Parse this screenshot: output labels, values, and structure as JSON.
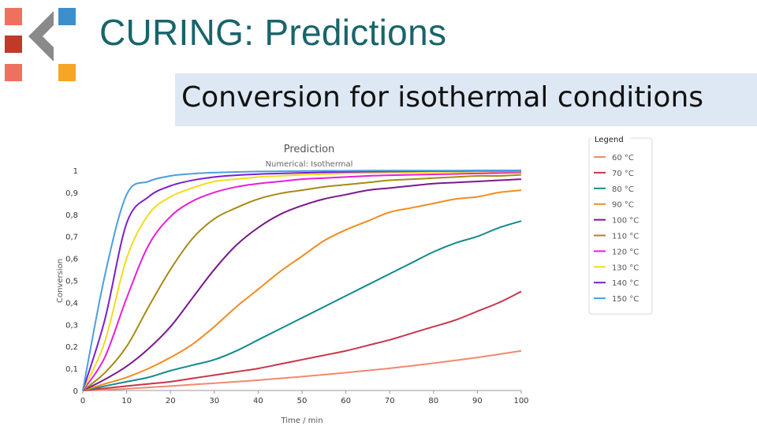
{
  "slide": {
    "title": "CURING: Predictions",
    "subtitle": "Conversion for isothermal conditions"
  },
  "colors": {
    "title": "#17656b",
    "subtitle_box": "#dde8f4"
  },
  "logo": {
    "icon": "chevron-squares-logo"
  },
  "chart_data": {
    "type": "line",
    "title": "Prediction",
    "subtitle": "Numerical: Isothermal",
    "xlabel": "Time / min",
    "ylabel": "Conversion",
    "xlim": [
      0,
      100
    ],
    "ylim": [
      0,
      1
    ],
    "xticks": [
      "0",
      "10",
      "20",
      "30",
      "40",
      "50",
      "60",
      "70",
      "80",
      "90",
      "100"
    ],
    "yticks": [
      "0",
      "0,1",
      "0,2",
      "0,3",
      "0,4",
      "0,5",
      "0,6",
      "0,7",
      "0,8",
      "0,9",
      "1"
    ],
    "grid": false,
    "legend": {
      "title": "Legend",
      "position": "right"
    },
    "x": [
      0,
      5,
      10,
      15,
      20,
      25,
      30,
      35,
      40,
      45,
      50,
      55,
      60,
      65,
      70,
      75,
      80,
      85,
      90,
      95,
      100
    ],
    "series": [
      {
        "name": "60 °C",
        "color": "#f08a6e",
        "values": [
          0,
          0.003,
          0.008,
          0.014,
          0.02,
          0.027,
          0.033,
          0.04,
          0.047,
          0.055,
          0.063,
          0.072,
          0.081,
          0.091,
          0.101,
          0.112,
          0.124,
          0.137,
          0.15,
          0.165,
          0.18
        ]
      },
      {
        "name": "70 °C",
        "color": "#c8364a",
        "values": [
          0,
          0.01,
          0.02,
          0.03,
          0.04,
          0.055,
          0.07,
          0.085,
          0.1,
          0.12,
          0.14,
          0.16,
          0.18,
          0.205,
          0.23,
          0.26,
          0.29,
          0.32,
          0.36,
          0.4,
          0.45
        ]
      },
      {
        "name": "80 °C",
        "color": "#138a8a",
        "values": [
          0,
          0.02,
          0.04,
          0.06,
          0.09,
          0.115,
          0.14,
          0.18,
          0.23,
          0.28,
          0.33,
          0.38,
          0.43,
          0.48,
          0.53,
          0.58,
          0.63,
          0.67,
          0.7,
          0.74,
          0.77
        ]
      },
      {
        "name": "90 °C",
        "color": "#f28c1e",
        "values": [
          0,
          0.03,
          0.06,
          0.1,
          0.15,
          0.21,
          0.29,
          0.38,
          0.46,
          0.54,
          0.61,
          0.68,
          0.73,
          0.77,
          0.81,
          0.83,
          0.85,
          0.87,
          0.88,
          0.9,
          0.91
        ]
      },
      {
        "name": "100 °C",
        "color": "#7a1a8c",
        "values": [
          0,
          0.05,
          0.11,
          0.19,
          0.29,
          0.42,
          0.55,
          0.66,
          0.74,
          0.8,
          0.84,
          0.87,
          0.89,
          0.91,
          0.92,
          0.93,
          0.94,
          0.945,
          0.95,
          0.955,
          0.96
        ]
      },
      {
        "name": "110 °C",
        "color": "#a88a14",
        "values": [
          0,
          0.08,
          0.2,
          0.38,
          0.55,
          0.69,
          0.78,
          0.83,
          0.87,
          0.895,
          0.91,
          0.925,
          0.935,
          0.945,
          0.955,
          0.96,
          0.965,
          0.97,
          0.975,
          0.975,
          0.98
        ]
      },
      {
        "name": "120 °C",
        "color": "#e81ed8",
        "values": [
          0,
          0.15,
          0.42,
          0.66,
          0.79,
          0.86,
          0.9,
          0.925,
          0.94,
          0.95,
          0.96,
          0.965,
          0.97,
          0.975,
          0.978,
          0.98,
          0.982,
          0.984,
          0.986,
          0.988,
          0.99
        ]
      },
      {
        "name": "130 °C",
        "color": "#f2dc1a",
        "values": [
          0,
          0.22,
          0.6,
          0.8,
          0.88,
          0.92,
          0.95,
          0.96,
          0.97,
          0.975,
          0.98,
          0.983,
          0.986,
          0.988,
          0.99,
          0.99,
          0.992,
          0.993,
          0.994,
          0.995,
          0.995
        ]
      },
      {
        "name": "140 °C",
        "color": "#7a1fd1",
        "values": [
          0,
          0.32,
          0.76,
          0.88,
          0.93,
          0.955,
          0.97,
          0.978,
          0.983,
          0.986,
          0.989,
          0.991,
          0.993,
          0.994,
          0.995,
          0.996,
          0.997,
          0.997,
          0.998,
          0.998,
          0.998
        ]
      },
      {
        "name": "150 °C",
        "color": "#4a9fe0",
        "values": [
          0,
          0.52,
          0.89,
          0.95,
          0.975,
          0.985,
          0.99,
          0.993,
          0.995,
          0.996,
          0.997,
          0.998,
          0.998,
          0.999,
          0.999,
          0.999,
          0.999,
          0.999,
          1.0,
          1.0,
          1.0
        ]
      }
    ]
  }
}
